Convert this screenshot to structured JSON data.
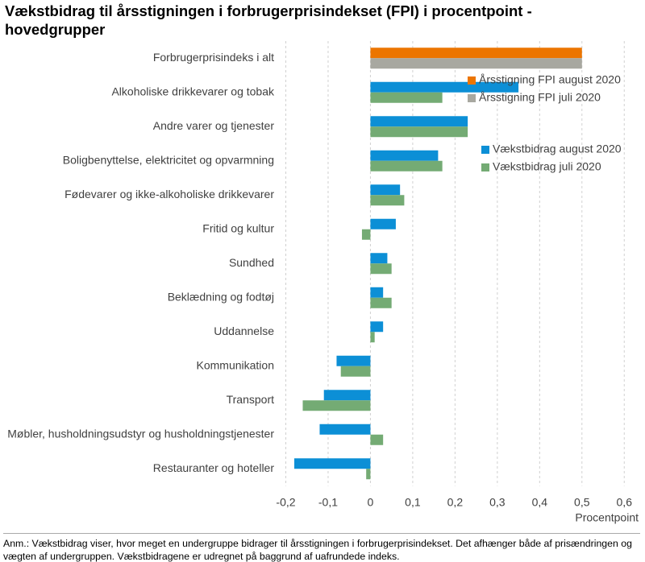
{
  "chart_data": {
    "type": "bar",
    "orientation": "horizontal",
    "title": "Vækstbidrag til årsstigningen i forbrugerprisindekset (FPI) i procentpoint - hovedgrupper",
    "x_label": "Procentpoint",
    "note": "Anm.: Vækstbidrag viser, hvor meget en undergruppe bidrager til årsstigningen i forbrugerprisindekset. Det afhænger både af prisændringen og vægten af undergruppen. Vækstbidragene er udregnet på baggrund af uafrundede indeks.",
    "categories": [
      "Forbrugerprisindeks i alt",
      "Alkoholiske drikkevarer og tobak",
      "Andre varer og tjenester",
      "Boligbenyttelse, elektricitet og opvarmning",
      "Fødevarer og ikke-alkoholiske drikkevarer",
      "Fritid og kultur",
      "Sundhed",
      "Beklædning og fodtøj",
      "Uddannelse",
      "Kommunikation",
      "Transport",
      "Møbler, husholdningsudstyr og husholdningstjenester",
      "Restauranter og hoteller"
    ],
    "series": [
      {
        "name": "Årsstigning FPI august 2020",
        "color": "#ec7500",
        "values": [
          0.5,
          null,
          null,
          null,
          null,
          null,
          null,
          null,
          null,
          null,
          null,
          null,
          null
        ]
      },
      {
        "name": "Årsstigning FPI juli 2020",
        "color": "#a8a8a0",
        "values": [
          0.5,
          null,
          null,
          null,
          null,
          null,
          null,
          null,
          null,
          null,
          null,
          null,
          null
        ]
      },
      {
        "name": "Vækstbidrag august 2020",
        "color": "#0c8fd6",
        "values": [
          null,
          0.35,
          0.23,
          0.16,
          0.07,
          0.06,
          0.04,
          0.03,
          0.03,
          -0.08,
          -0.11,
          -0.12,
          -0.18
        ]
      },
      {
        "name": "Vækstbidrag juli 2020",
        "color": "#74ab74",
        "values": [
          null,
          0.17,
          0.23,
          0.17,
          0.08,
          -0.02,
          0.05,
          0.05,
          0.01,
          -0.07,
          -0.16,
          0.03,
          -0.01
        ]
      }
    ],
    "xlim": [
      -0.22,
      0.63
    ],
    "xticks": [
      {
        "value": -0.2,
        "label": "-0,2"
      },
      {
        "value": -0.1,
        "label": "-0,1"
      },
      0,
      {
        "value": 0.1,
        "label": "0,1"
      },
      {
        "value": 0.2,
        "label": "0,2"
      },
      {
        "value": 0.3,
        "label": "0,3"
      },
      {
        "value": 0.4,
        "label": "0,4"
      },
      {
        "value": 0.5,
        "label": "0,5"
      },
      {
        "value": 0.6,
        "label": "0,6"
      }
    ],
    "grid": true
  }
}
